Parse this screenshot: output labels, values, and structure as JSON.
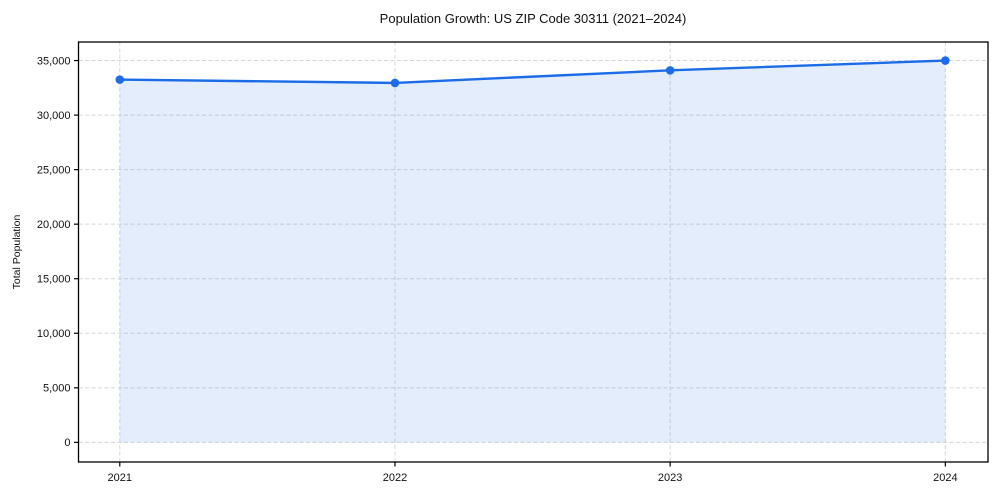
{
  "chart_data": {
    "type": "area",
    "title": "Population Growth: US ZIP Code 30311 (2021–2024)",
    "xlabel": "",
    "ylabel": "Total Population",
    "x": [
      2021,
      2022,
      2023,
      2024
    ],
    "x_tick_labels": [
      "2021",
      "2022",
      "2023",
      "2024"
    ],
    "series": [
      {
        "name": "Total Population",
        "values": [
          33250,
          32950,
          34100,
          35000
        ]
      }
    ],
    "baseline": 0,
    "y_ticks": [
      0,
      5000,
      10000,
      15000,
      20000,
      25000,
      30000,
      35000
    ],
    "y_tick_labels": [
      "0",
      "5,000",
      "10,000",
      "15,000",
      "20,000",
      "25,000",
      "30,000",
      "35,000"
    ],
    "xlim": [
      2020.85,
      2024.155
    ],
    "ylim": [
      -1800,
      36700
    ],
    "grid": true,
    "grid_style": "dashed",
    "legend": "none",
    "colors": {
      "line": "#1c6ce8",
      "fill": "#1c6ce8",
      "fill_opacity": "0.12",
      "grid": "#d6d6d6",
      "spine": "#000000",
      "tick_label": "#111111",
      "background": "#ffffff"
    }
  }
}
